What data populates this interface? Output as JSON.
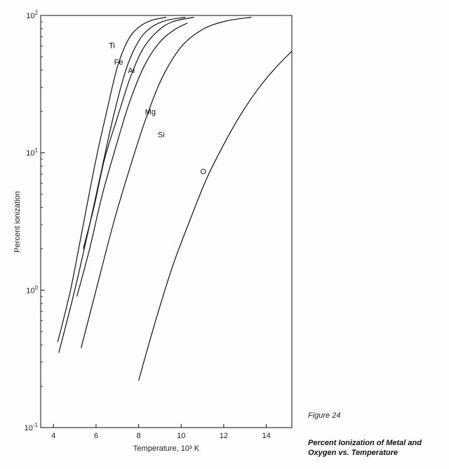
{
  "chart_data": {
    "type": "line",
    "xlabel": "Temperature, 10³ K",
    "ylabel": "Percent ionization",
    "xlim": [
      3.4,
      15.2
    ],
    "ylim": [
      0.1,
      100
    ],
    "y_scale": "log",
    "grid": false,
    "x_ticks": [
      {
        "value": 4,
        "label": "4"
      },
      {
        "value": 6,
        "label": "6"
      },
      {
        "value": 8,
        "label": "8"
      },
      {
        "value": 10,
        "label": "10"
      },
      {
        "value": 12,
        "label": "12"
      },
      {
        "value": 14,
        "label": "14"
      }
    ],
    "y_ticks": [
      {
        "value": 0.1,
        "base": "10",
        "exp": "-1"
      },
      {
        "value": 1,
        "base": "10",
        "exp": "0"
      },
      {
        "value": 10,
        "base": "10",
        "exp": "1"
      },
      {
        "value": 100,
        "base": "10",
        "exp": "2"
      }
    ],
    "series": [
      {
        "name": "Ti",
        "x": [
          4.2,
          4.8,
          5.4,
          6.0,
          6.5,
          7.0,
          7.5,
          8.0,
          8.6,
          9.3
        ],
        "y": [
          0.42,
          1.0,
          3.0,
          9.0,
          20.0,
          42.0,
          66.0,
          82.0,
          92.0,
          97.0
        ]
      },
      {
        "name": "Fe",
        "x": [
          4.25,
          5.0,
          5.7,
          6.3,
          6.8,
          7.4,
          8.0,
          8.6,
          9.3,
          10.2
        ],
        "y": [
          0.35,
          1.0,
          3.0,
          8.0,
          18.0,
          40.0,
          65.0,
          82.0,
          92.0,
          97.0
        ]
      },
      {
        "name": "Al",
        "x": [
          5.4,
          5.9,
          6.4,
          7.0,
          7.6,
          8.2,
          8.9,
          9.6,
          10.6
        ],
        "y": [
          2.0,
          4.0,
          9.0,
          18.0,
          35.0,
          57.0,
          77.0,
          90.0,
          97.0
        ]
      },
      {
        "name": "Mg",
        "x": [
          5.1,
          5.7,
          6.3,
          7.0,
          7.6,
          8.3,
          9.0,
          9.7,
          10.3
        ],
        "y": [
          0.9,
          2.0,
          5.0,
          12.0,
          24.0,
          44.0,
          64.0,
          79.0,
          88.0
        ]
      },
      {
        "name": "Si",
        "x": [
          5.3,
          6.0,
          6.8,
          7.5,
          8.3,
          9.1,
          10.0,
          11.0,
          12.1,
          13.3
        ],
        "y": [
          0.38,
          1.0,
          3.0,
          7.0,
          17.0,
          35.0,
          59.0,
          79.0,
          91.0,
          97.0
        ]
      },
      {
        "name": "O",
        "x": [
          8.0,
          8.8,
          9.6,
          10.4,
          11.2,
          12.0,
          12.8,
          13.6,
          14.4,
          15.2
        ],
        "y": [
          0.22,
          0.6,
          1.5,
          3.2,
          6.5,
          11.5,
          19.0,
          29.0,
          41.0,
          55.0
        ]
      }
    ],
    "series_labels": [
      {
        "name": "Ti",
        "x": 6.6,
        "y": 58.0
      },
      {
        "name": "Fe",
        "x": 6.85,
        "y": 44.0
      },
      {
        "name": "Al",
        "x": 7.5,
        "y": 38.0
      },
      {
        "name": "Mg",
        "x": 8.3,
        "y": 19.0
      },
      {
        "name": "Si",
        "x": 8.9,
        "y": 13.0
      },
      {
        "name": "O",
        "x": 10.9,
        "y": 7.0
      }
    ]
  },
  "caption": {
    "figure_label": "Figure 24",
    "title_line1": "Percent Ionization of Metal and",
    "title_line2": "Oxygen vs. Temperature"
  }
}
